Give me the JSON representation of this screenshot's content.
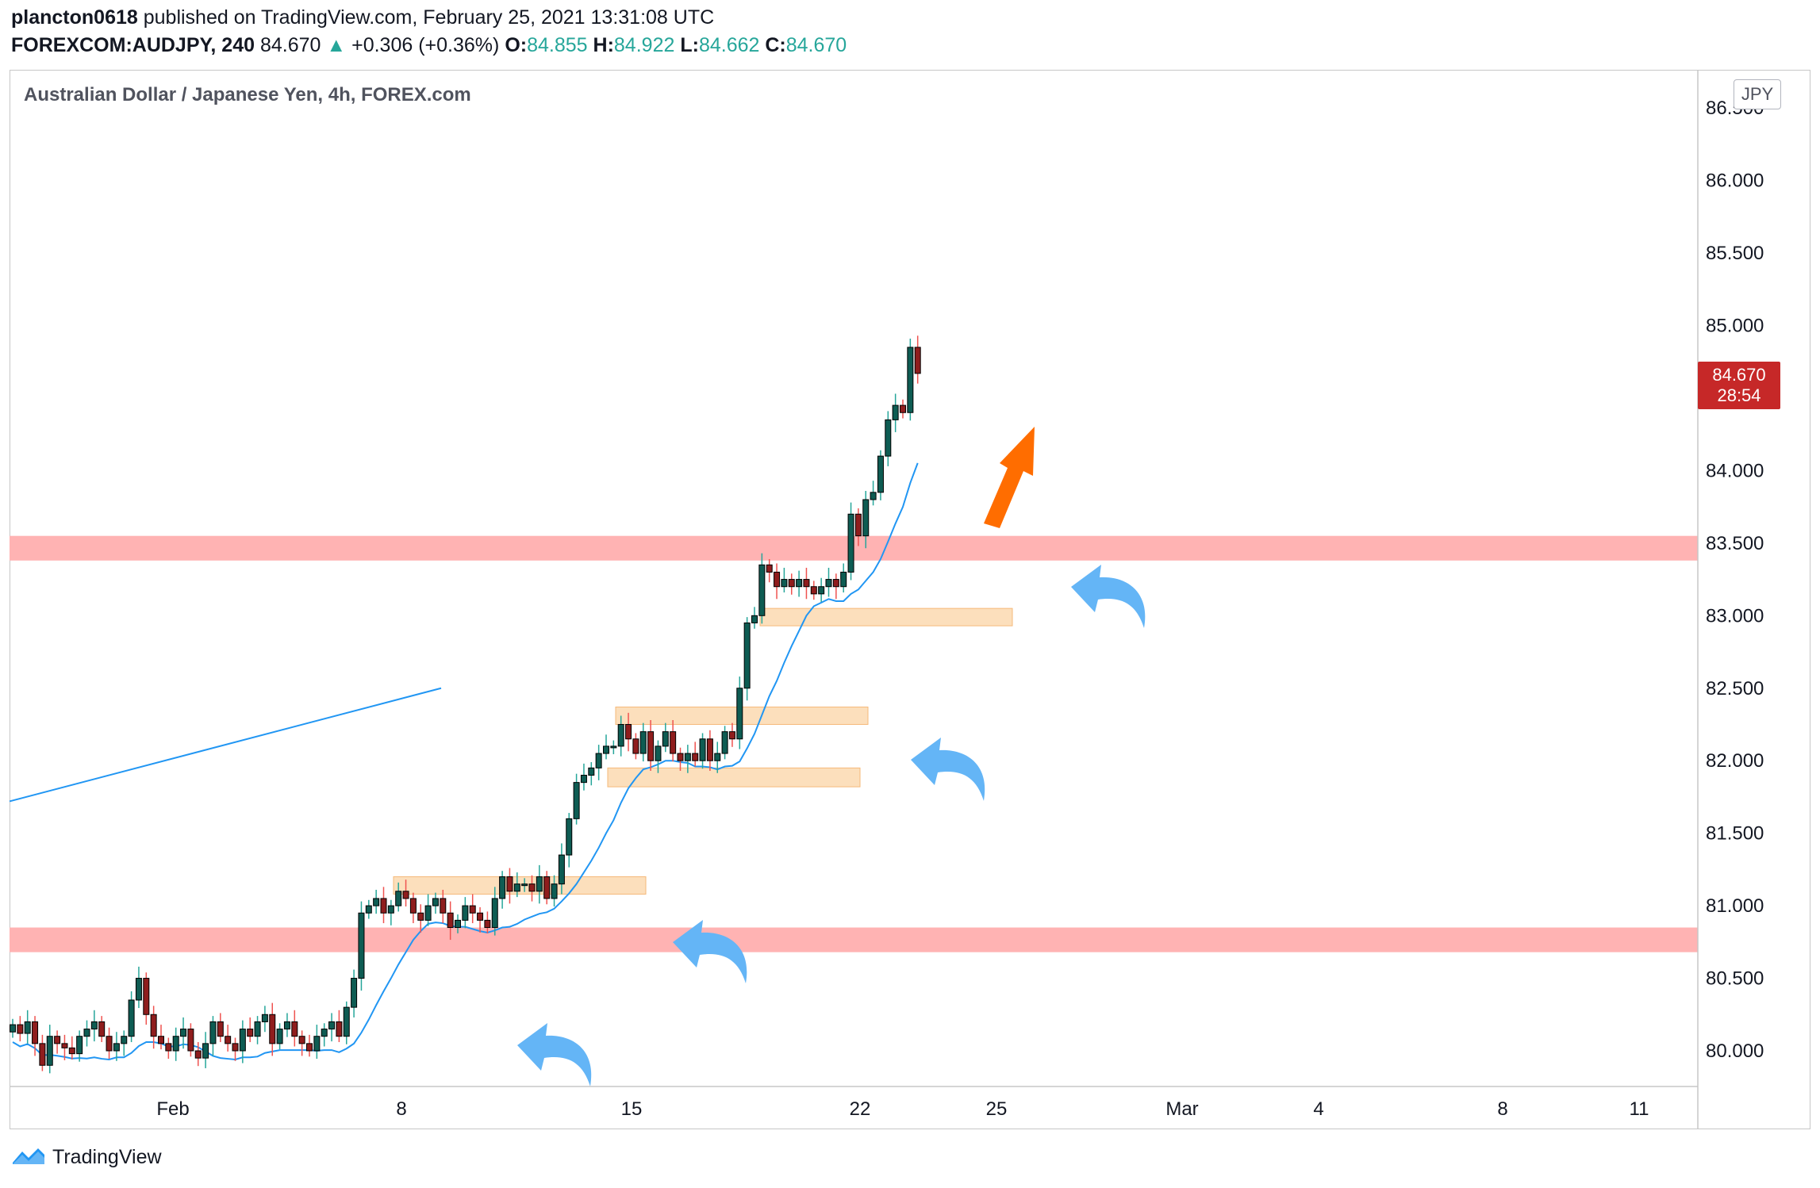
{
  "header": {
    "publisher": "plancton0618",
    "published_text": "published on TradingView.com, February 25, 2021 13:31:08 UTC",
    "symbol": "FOREXCOM:AUDJPY, 240",
    "last": "84.670",
    "change": "+0.306 (+0.36%)",
    "o_label": "O:",
    "o": "84.855",
    "h_label": "H:",
    "h": "84.922",
    "l_label": "L:",
    "l": "84.662",
    "c_label": "C:",
    "c": "84.670"
  },
  "chart_title": "Australian Dollar / Japanese Yen, 4h, FOREX.com",
  "currency_badge": "JPY",
  "price_label": {
    "price": "84.670",
    "countdown": "28:54"
  },
  "footer": {
    "brand": "TradingView"
  },
  "colors": {
    "up": "#26a69a",
    "down": "#ef5350",
    "ma": "#2196f3",
    "zone_red": "#ffb3b3",
    "zone_orange": "#fcd9b0",
    "arrow_blue": "#64b5f6",
    "arrow_orange": "#ff6d00"
  },
  "chart_data": {
    "type": "line",
    "ylim": [
      79.8,
      86.6
    ],
    "y_ticks": [
      "80.000",
      "80.500",
      "81.000",
      "81.500",
      "82.000",
      "82.500",
      "83.000",
      "83.500",
      "84.000",
      "84.500",
      "85.000",
      "85.500",
      "86.000",
      "86.500"
    ],
    "x_ticks": [
      "Feb",
      "8",
      "15",
      "22",
      "25",
      "Mar",
      "4",
      "8",
      "11"
    ],
    "series": [
      {
        "values": [
          80.18,
          80.12,
          80.2,
          80.05,
          79.9,
          80.1,
          80.05,
          80.02,
          79.98,
          80.1,
          80.15,
          80.2,
          80.1,
          80.0,
          80.05,
          80.1,
          80.35,
          80.5,
          80.25,
          80.1,
          80.05,
          80.0,
          80.1,
          80.15,
          80.0,
          79.95,
          80.05,
          80.2,
          80.1,
          80.05,
          80.0,
          80.15,
          80.1,
          80.2,
          80.25,
          80.05,
          80.15,
          80.2,
          80.1,
          80.05,
          80.0,
          80.1,
          80.15,
          80.2,
          80.1,
          80.3,
          80.5,
          80.95,
          81.0,
          81.05,
          80.95,
          81.0,
          81.1,
          81.05,
          80.95,
          80.9,
          81.0,
          81.05,
          80.95,
          80.85,
          80.9,
          81.0,
          80.95,
          80.9,
          80.85,
          81.05,
          81.2,
          81.1,
          81.15,
          81.15,
          81.1,
          81.2,
          81.05,
          81.15,
          81.35,
          81.6,
          81.85,
          81.9,
          81.95,
          82.05,
          82.1,
          82.1,
          82.25,
          82.15,
          82.05,
          82.2,
          82.0,
          82.1,
          82.2,
          82.05,
          82.0,
          82.05,
          82.0,
          82.15,
          82.0,
          82.05,
          82.2,
          82.15,
          82.5,
          82.95,
          83.0,
          83.35,
          83.3,
          83.2,
          83.25,
          83.2,
          83.25,
          83.2,
          83.15,
          83.2,
          83.25,
          83.2,
          83.3,
          83.7,
          83.55,
          83.8,
          83.85,
          84.1,
          84.35,
          84.45,
          84.4,
          84.85,
          84.67
        ]
      }
    ]
  }
}
